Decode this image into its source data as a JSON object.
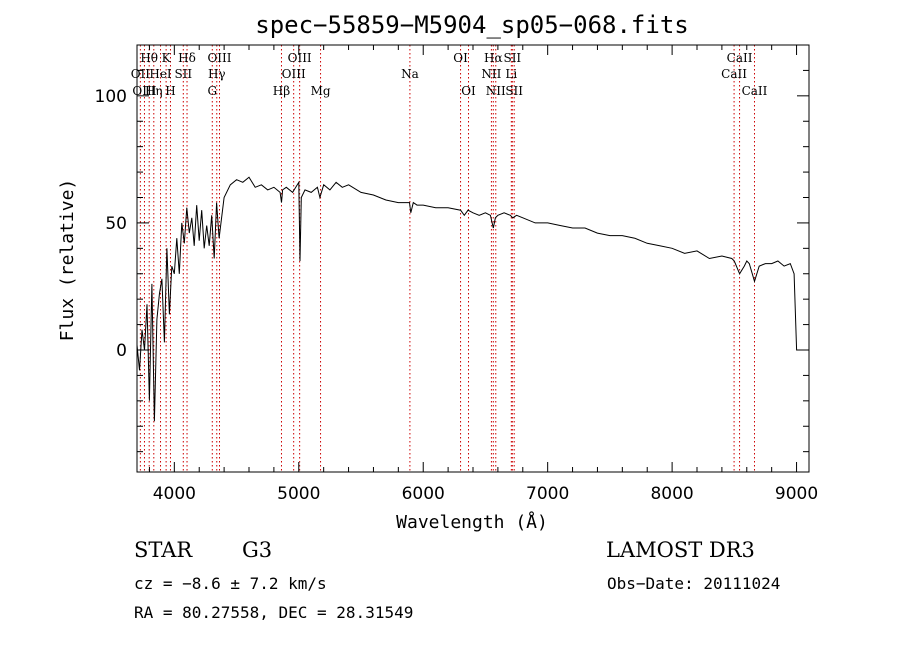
{
  "chart_data": {
    "type": "line",
    "title": "spec−55859−M5904_sp05−068.fits",
    "xlabel": "Wavelength (Å)",
    "ylabel": "Flux (relative)",
    "xlim": [
      3700,
      9100
    ],
    "ylim": [
      -48,
      120
    ],
    "x_ticks": [
      4000,
      5000,
      6000,
      7000,
      8000,
      9000
    ],
    "x_tick_labels": [
      "4000",
      "5000",
      "6000",
      "7000",
      "8000",
      "9000"
    ],
    "y_ticks": [
      0,
      50,
      100
    ],
    "y_tick_labels": [
      "0",
      "50",
      "100"
    ],
    "line_color": "#000000",
    "marker_color": "#cc0000",
    "series": [
      {
        "name": "flux",
        "x": [
          3700,
          3720,
          3740,
          3760,
          3780,
          3800,
          3820,
          3840,
          3860,
          3880,
          3900,
          3920,
          3940,
          3960,
          3980,
          4000,
          4020,
          4040,
          4060,
          4080,
          4100,
          4120,
          4140,
          4160,
          4180,
          4200,
          4220,
          4240,
          4260,
          4280,
          4300,
          4320,
          4340,
          4360,
          4380,
          4400,
          4450,
          4500,
          4550,
          4600,
          4650,
          4700,
          4750,
          4800,
          4850,
          4861,
          4870,
          4900,
          4950,
          5000,
          5010,
          5020,
          5050,
          5100,
          5150,
          5170,
          5200,
          5250,
          5300,
          5350,
          5400,
          5500,
          5600,
          5700,
          5800,
          5850,
          5890,
          5900,
          5920,
          5950,
          6000,
          6100,
          6200,
          6300,
          6330,
          6360,
          6400,
          6450,
          6500,
          6540,
          6563,
          6580,
          6600,
          6650,
          6700,
          6720,
          6750,
          6800,
          6900,
          7000,
          7100,
          7200,
          7300,
          7400,
          7500,
          7600,
          7700,
          7800,
          7900,
          8000,
          8100,
          8200,
          8300,
          8400,
          8480,
          8500,
          8542,
          8580,
          8600,
          8620,
          8662,
          8700,
          8750,
          8800,
          8850,
          8900,
          8950,
          8980,
          9000,
          9005
        ],
        "y": [
          2,
          -8,
          8,
          0,
          18,
          -20,
          26,
          -28,
          12,
          22,
          28,
          3,
          40,
          14,
          33,
          30,
          44,
          30,
          50,
          42,
          56,
          46,
          52,
          41,
          57,
          43,
          55,
          40,
          49,
          41,
          53,
          36,
          58,
          44,
          52,
          60,
          65,
          67,
          66,
          68,
          64,
          65,
          63,
          64,
          62,
          58,
          63,
          64,
          62,
          66,
          35,
          60,
          63,
          62,
          64,
          60,
          65,
          63,
          66,
          64,
          65,
          62,
          61,
          59,
          58,
          58,
          58,
          54,
          58,
          57,
          57,
          56,
          56,
          55,
          53,
          55,
          54,
          53,
          54,
          53,
          48,
          52,
          53,
          54,
          53,
          52,
          53,
          52,
          50,
          50,
          49,
          48,
          48,
          46,
          45,
          45,
          44,
          42,
          41,
          40,
          38,
          39,
          36,
          37,
          36,
          35,
          30,
          33,
          35,
          34,
          27,
          33,
          34,
          34,
          35,
          33,
          34,
          30,
          0,
          0
        ]
      }
    ],
    "spectral_lines": [
      {
        "label": "Hθ",
        "x": 3798,
        "row": 1
      },
      {
        "label": "OII",
        "x": 3727,
        "row": 2
      },
      {
        "label": "OIII",
        "x": 3760,
        "row": 3
      },
      {
        "label": "Hη",
        "x": 3835,
        "row": 3
      },
      {
        "label": "HeI",
        "x": 3889,
        "row": 2
      },
      {
        "label": "K",
        "x": 3934,
        "row": 1
      },
      {
        "label": "H",
        "x": 3969,
        "row": 3
      },
      {
        "label": "SII",
        "x": 4072,
        "row": 2
      },
      {
        "label": "Hδ",
        "x": 4102,
        "row": 1
      },
      {
        "label": "OIII",
        "x": 4363,
        "row": 1
      },
      {
        "label": "Hγ",
        "x": 4341,
        "row": 2
      },
      {
        "label": "G",
        "x": 4305,
        "row": 3
      },
      {
        "label": "Hβ",
        "x": 4861,
        "row": 3
      },
      {
        "label": "OIII",
        "x": 5007,
        "row": 1
      },
      {
        "label": "OIII",
        "x": 4959,
        "row": 2
      },
      {
        "label": "Mg",
        "x": 5175,
        "row": 3
      },
      {
        "label": "Na",
        "x": 5893,
        "row": 2
      },
      {
        "label": "OI",
        "x": 6300,
        "row": 1
      },
      {
        "label": "OI",
        "x": 6364,
        "row": 3
      },
      {
        "label": "Hα",
        "x": 6563,
        "row": 1
      },
      {
        "label": "NII",
        "x": 6548,
        "row": 2
      },
      {
        "label": "NII",
        "x": 6583,
        "row": 3
      },
      {
        "label": "SII",
        "x": 6716,
        "row": 1
      },
      {
        "label": "Li",
        "x": 6708,
        "row": 2
      },
      {
        "label": "SII",
        "x": 6731,
        "row": 3
      },
      {
        "label": "CaII",
        "x": 8542,
        "row": 1
      },
      {
        "label": "CaII",
        "x": 8498,
        "row": 2
      },
      {
        "label": "CaII",
        "x": 8662,
        "row": 3
      }
    ]
  },
  "info": {
    "object_class": "STAR",
    "subclass": "G3",
    "survey": "LAMOST DR3",
    "redshift_line": "cz = −8.6 ± 7.2 km/s",
    "obs_date": "Obs−Date: 20111024",
    "coords": "RA =  80.27558, DEC =  28.31549"
  }
}
